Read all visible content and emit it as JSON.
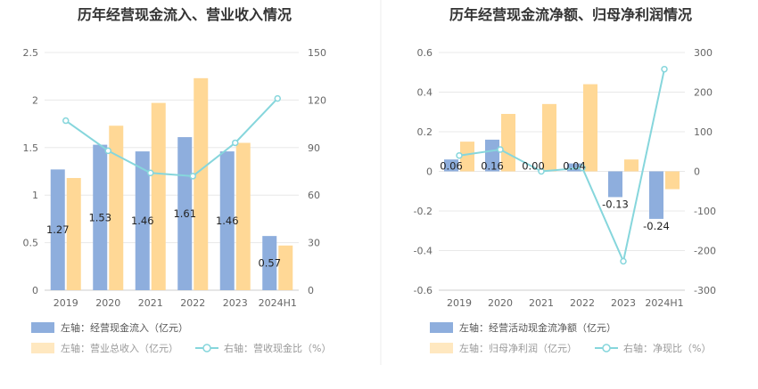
{
  "colors": {
    "bar_primary": "#8eaedd",
    "bar_secondary": "#ffd896",
    "line": "#86d6dc",
    "grid": "#e8e8e8",
    "divider": "#eeeeee"
  },
  "chart_data": [
    {
      "type": "bar",
      "title": "历年经营现金流入、营业收入情况",
      "categories": [
        "2019",
        "2020",
        "2021",
        "2022",
        "2023",
        "2024H1"
      ],
      "left_axis": {
        "ticks": [
          "0",
          "0.5",
          "1",
          "1.5",
          "2",
          "2.5"
        ],
        "ylim": [
          0,
          2.5
        ]
      },
      "right_axis": {
        "ticks": [
          "0",
          "30",
          "60",
          "90",
          "120",
          "150"
        ],
        "ylim": [
          0,
          150
        ]
      },
      "grid": true,
      "legend_position": "bottom-left",
      "series": [
        {
          "name": "左轴：经营现金流入（亿元）",
          "type": "bar",
          "axis": "left",
          "values": [
            1.27,
            1.53,
            1.46,
            1.61,
            1.46,
            0.57
          ],
          "labels": [
            "1.27",
            "1.53",
            "1.46",
            "1.61",
            "1.46",
            "0.57"
          ]
        },
        {
          "name": "左轴：营业总收入（亿元）",
          "type": "bar",
          "axis": "left",
          "values": [
            1.18,
            1.73,
            1.97,
            2.23,
            1.55,
            0.47
          ]
        },
        {
          "name": "右轴：营收现金比（%）",
          "type": "line",
          "axis": "right",
          "values": [
            107,
            88,
            74,
            72,
            93,
            121
          ]
        }
      ]
    },
    {
      "type": "bar",
      "title": "历年经营现金流净额、归母净利润情况",
      "categories": [
        "2019",
        "2020",
        "2021",
        "2022",
        "2023",
        "2024H1"
      ],
      "left_axis": {
        "ticks": [
          "-0.6",
          "-0.4",
          "-0.2",
          "0",
          "0.2",
          "0.4",
          "0.6"
        ],
        "ylim": [
          -0.6,
          0.6
        ]
      },
      "right_axis": {
        "ticks": [
          "-300",
          "-200",
          "-100",
          "0",
          "100",
          "200",
          "300"
        ],
        "ylim": [
          -300,
          300
        ]
      },
      "grid": true,
      "legend_position": "bottom-left",
      "series": [
        {
          "name": "左轴：经营活动现金流净额（亿元）",
          "type": "bar",
          "axis": "left",
          "values": [
            0.06,
            0.16,
            0.0,
            0.04,
            -0.13,
            -0.24
          ],
          "labels": [
            "0.06",
            "0.16",
            "0.00",
            "0.04",
            "-0.13",
            "-0.24"
          ]
        },
        {
          "name": "左轴：归母净利润（亿元）",
          "type": "bar",
          "axis": "left",
          "values": [
            0.15,
            0.29,
            0.34,
            0.44,
            0.06,
            -0.09
          ]
        },
        {
          "name": "右轴：净现比（%）",
          "type": "line",
          "axis": "right",
          "values": [
            40,
            55,
            0,
            9,
            -227,
            258
          ]
        }
      ]
    }
  ]
}
